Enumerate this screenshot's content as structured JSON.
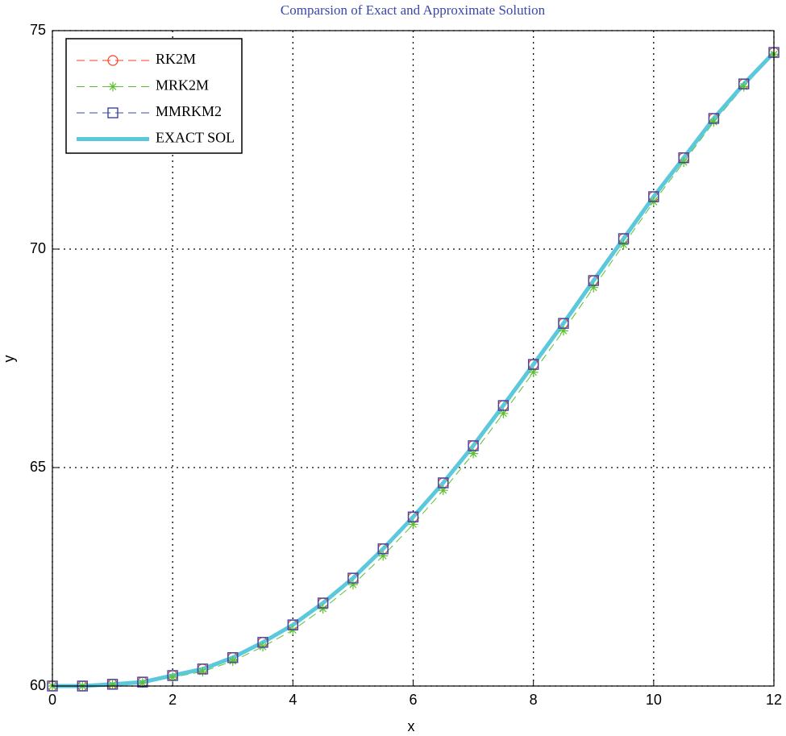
{
  "chart_data": {
    "type": "line",
    "title": "Comparsion of Exact and Approximate Solution",
    "xlabel": "x",
    "ylabel": "y",
    "x": [
      0,
      0.5,
      1,
      1.5,
      2,
      2.5,
      3,
      3.5,
      4,
      4.5,
      5,
      5.5,
      6,
      6.5,
      7,
      7.5,
      8,
      8.5,
      9,
      9.5,
      10,
      10.5,
      11,
      11.5,
      12
    ],
    "series": [
      {
        "name": "RK2M",
        "color": "#ff3b1f",
        "linestyle": "dashed",
        "marker": "circle",
        "linewidth": 1,
        "values": [
          60,
          60,
          60.04,
          60.09,
          60.24,
          60.39,
          60.65,
          61.0,
          61.4,
          61.9,
          62.47,
          63.14,
          63.87,
          64.65,
          65.5,
          66.42,
          67.36,
          68.3,
          69.28,
          70.24,
          71.2,
          72.09,
          72.99,
          73.78,
          74.5
        ]
      },
      {
        "name": "MRK2M",
        "color": "#5cc02e",
        "linestyle": "dashed",
        "marker": "asterisk",
        "linewidth": 1,
        "values": [
          60,
          60,
          60.03,
          60.07,
          60.2,
          60.33,
          60.57,
          60.9,
          61.28,
          61.77,
          62.32,
          62.98,
          63.7,
          64.48,
          65.32,
          66.24,
          67.18,
          68.13,
          69.12,
          70.1,
          71.08,
          71.99,
          72.91,
          73.72,
          74.46
        ]
      },
      {
        "name": "MMRKM2",
        "color": "#3a46a8",
        "linestyle": "dashed",
        "marker": "square",
        "linewidth": 1,
        "values": [
          60,
          60,
          60.04,
          60.09,
          60.24,
          60.39,
          60.65,
          61.0,
          61.4,
          61.9,
          62.47,
          63.14,
          63.87,
          64.65,
          65.5,
          66.42,
          67.36,
          68.3,
          69.28,
          70.24,
          71.2,
          72.09,
          72.99,
          73.78,
          74.5
        ]
      },
      {
        "name": "EXACT SOL",
        "color": "#5bc8dc",
        "linestyle": "solid",
        "marker": "none",
        "linewidth": 5,
        "values": [
          60,
          60,
          60.04,
          60.09,
          60.24,
          60.39,
          60.65,
          61.0,
          61.4,
          61.9,
          62.47,
          63.14,
          63.87,
          64.65,
          65.5,
          66.42,
          67.36,
          68.3,
          69.28,
          70.24,
          71.2,
          72.09,
          72.99,
          73.78,
          74.5
        ]
      }
    ],
    "xlim": [
      0,
      12
    ],
    "xticks": [
      0,
      2,
      4,
      6,
      8,
      10,
      12
    ],
    "ylim": [
      60,
      75
    ],
    "yticks": [
      60,
      65,
      70,
      75
    ],
    "grid": true,
    "legend": "upper left"
  }
}
